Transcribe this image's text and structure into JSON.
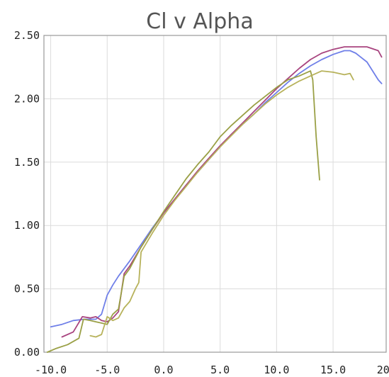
{
  "chart_data": {
    "type": "line",
    "title": "Cl v Alpha",
    "xlabel": "",
    "ylabel": "",
    "xlim": [
      -10.6,
      19.7
    ],
    "ylim": [
      0,
      2.5
    ],
    "x_ticks": [
      "-10.0",
      "-5.0",
      "0.0",
      "5.0",
      "10.0",
      "15.0",
      "20.0"
    ],
    "y_ticks": [
      "0.00",
      "0.50",
      "1.00",
      "1.50",
      "2.00",
      "2.50"
    ],
    "grid": true,
    "legend": "none",
    "series": [
      {
        "color": "#6f7fe8",
        "points": [
          [
            -10,
            0.2
          ],
          [
            -9,
            0.22
          ],
          [
            -8,
            0.25
          ],
          [
            -7,
            0.26
          ],
          [
            -6.5,
            0.26
          ],
          [
            -6,
            0.26
          ],
          [
            -5.5,
            0.3
          ],
          [
            -5,
            0.45
          ],
          [
            -4.5,
            0.53
          ],
          [
            -4,
            0.6
          ],
          [
            -3,
            0.72
          ],
          [
            -2,
            0.85
          ],
          [
            -1,
            0.98
          ],
          [
            0,
            1.1
          ],
          [
            1,
            1.21
          ],
          [
            2,
            1.32
          ],
          [
            3,
            1.42
          ],
          [
            4,
            1.52
          ],
          [
            5,
            1.62
          ],
          [
            6,
            1.72
          ],
          [
            7,
            1.8
          ],
          [
            8,
            1.88
          ],
          [
            9,
            1.97
          ],
          [
            10,
            2.05
          ],
          [
            11,
            2.13
          ],
          [
            12,
            2.2
          ],
          [
            13,
            2.26
          ],
          [
            14,
            2.31
          ],
          [
            15,
            2.35
          ],
          [
            16,
            2.38
          ],
          [
            16.5,
            2.38
          ],
          [
            17,
            2.36
          ],
          [
            18,
            2.29
          ],
          [
            19,
            2.15
          ],
          [
            19.3,
            2.12
          ]
        ]
      },
      {
        "color": "#a8447f",
        "points": [
          [
            -9,
            0.12
          ],
          [
            -8,
            0.16
          ],
          [
            -7.2,
            0.28
          ],
          [
            -6.5,
            0.27
          ],
          [
            -6,
            0.28
          ],
          [
            -5.5,
            0.25
          ],
          [
            -5,
            0.24
          ],
          [
            -4.5,
            0.27
          ],
          [
            -4,
            0.32
          ],
          [
            -3.5,
            0.62
          ],
          [
            -3,
            0.68
          ],
          [
            -2,
            0.83
          ],
          [
            -1,
            0.97
          ],
          [
            0,
            1.1
          ],
          [
            1,
            1.21
          ],
          [
            2,
            1.32
          ],
          [
            3,
            1.43
          ],
          [
            4,
            1.53
          ],
          [
            5,
            1.63
          ],
          [
            6,
            1.72
          ],
          [
            7,
            1.81
          ],
          [
            8,
            1.9
          ],
          [
            9,
            1.99
          ],
          [
            10,
            2.08
          ],
          [
            11,
            2.16
          ],
          [
            12,
            2.24
          ],
          [
            13,
            2.31
          ],
          [
            14,
            2.36
          ],
          [
            15,
            2.39
          ],
          [
            16,
            2.41
          ],
          [
            17,
            2.41
          ],
          [
            18,
            2.41
          ],
          [
            19,
            2.38
          ],
          [
            19.3,
            2.33
          ]
        ]
      },
      {
        "color": "#9aa046",
        "points": [
          [
            -10.3,
            0.0
          ],
          [
            -9.5,
            0.03
          ],
          [
            -8.5,
            0.06
          ],
          [
            -7.5,
            0.11
          ],
          [
            -7.1,
            0.26
          ],
          [
            -6.5,
            0.25
          ],
          [
            -6,
            0.24
          ],
          [
            -5.5,
            0.23
          ],
          [
            -5,
            0.22
          ],
          [
            -4.5,
            0.3
          ],
          [
            -4,
            0.34
          ],
          [
            -3.5,
            0.6
          ],
          [
            -3,
            0.66
          ],
          [
            -2,
            0.83
          ],
          [
            -1,
            0.97
          ],
          [
            0,
            1.11
          ],
          [
            1,
            1.24
          ],
          [
            2,
            1.37
          ],
          [
            3,
            1.48
          ],
          [
            4,
            1.58
          ],
          [
            5,
            1.7
          ],
          [
            6,
            1.79
          ],
          [
            7,
            1.87
          ],
          [
            8,
            1.95
          ],
          [
            9,
            2.02
          ],
          [
            10,
            2.09
          ],
          [
            11,
            2.15
          ],
          [
            12,
            2.18
          ],
          [
            13,
            2.22
          ],
          [
            13.2,
            2.15
          ],
          [
            13.5,
            1.7
          ],
          [
            13.8,
            1.36
          ]
        ]
      },
      {
        "color": "#b7b25b",
        "points": [
          [
            -6.5,
            0.13
          ],
          [
            -6,
            0.12
          ],
          [
            -5.5,
            0.14
          ],
          [
            -5,
            0.28
          ],
          [
            -4.5,
            0.25
          ],
          [
            -4,
            0.27
          ],
          [
            -3.5,
            0.35
          ],
          [
            -3,
            0.4
          ],
          [
            -2.5,
            0.5
          ],
          [
            -2.2,
            0.55
          ],
          [
            -2,
            0.79
          ],
          [
            -1,
            0.94
          ],
          [
            0,
            1.08
          ],
          [
            1,
            1.2
          ],
          [
            2,
            1.31
          ],
          [
            3,
            1.42
          ],
          [
            4,
            1.52
          ],
          [
            5,
            1.62
          ],
          [
            6,
            1.71
          ],
          [
            7,
            1.8
          ],
          [
            8,
            1.88
          ],
          [
            9,
            1.96
          ],
          [
            10,
            2.03
          ],
          [
            11,
            2.09
          ],
          [
            12,
            2.14
          ],
          [
            13,
            2.18
          ],
          [
            14,
            2.22
          ],
          [
            15,
            2.21
          ],
          [
            16,
            2.19
          ],
          [
            16.5,
            2.2
          ],
          [
            16.8,
            2.15
          ]
        ]
      }
    ]
  }
}
